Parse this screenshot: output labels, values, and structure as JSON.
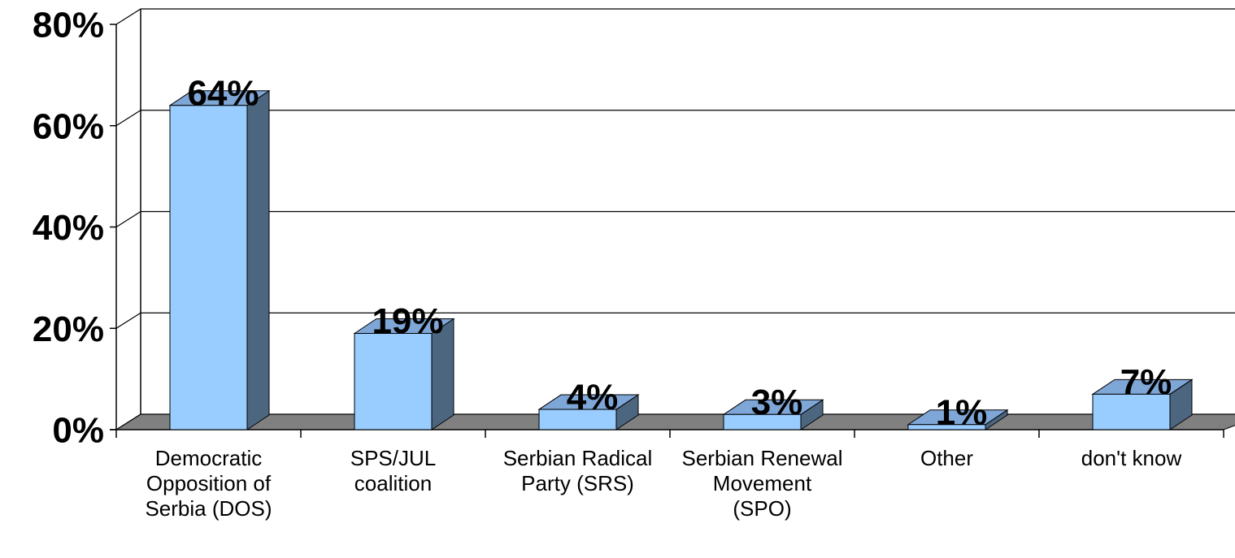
{
  "chart_data": {
    "type": "bar3d",
    "categories": [
      "Democratic Opposition of Serbia (DOS)",
      "SPS/JUL coalition",
      "Serbian Radical Party (SRS)",
      "Serbian Renewal Movement (SPO)",
      "Other",
      "don't know"
    ],
    "values": [
      64,
      19,
      4,
      3,
      1,
      7
    ],
    "value_labels": [
      "64%",
      "19%",
      "4%",
      "3%",
      "1%",
      "7%"
    ],
    "colors": {
      "front": "#99ccff",
      "side": "#4d6680",
      "top": "#7ea6d6",
      "floor": "#808080"
    },
    "ylim": [
      0,
      80
    ],
    "yticks": [
      {
        "value": 0,
        "label": "0%"
      },
      {
        "value": 20,
        "label": "20%"
      },
      {
        "value": 40,
        "label": "40%"
      },
      {
        "value": 60,
        "label": "60%"
      },
      {
        "value": 80,
        "label": "80%"
      }
    ],
    "grid": true
  }
}
